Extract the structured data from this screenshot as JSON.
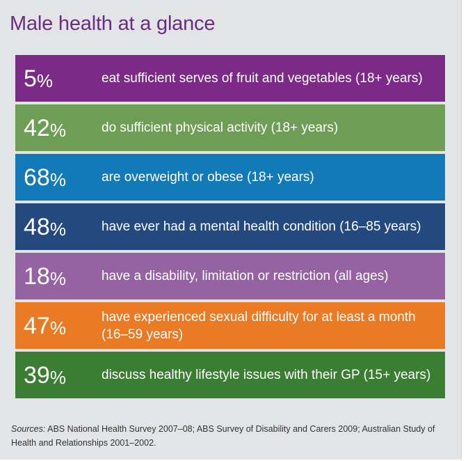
{
  "title": "Male health at a glance",
  "rows": [
    {
      "value": "5",
      "percent_sign": "%",
      "text": "eat sufficient serves of fruit and vegetables (18+ years)",
      "color": "#7b2a85"
    },
    {
      "value": "42",
      "percent_sign": "%",
      "text": "do sufficient physical activity (18+ years)",
      "color": "#6e9d55"
    },
    {
      "value": "68",
      "percent_sign": "%",
      "text": "are overweight or obese (18+ years)",
      "color": "#137ab8"
    },
    {
      "value": "48",
      "percent_sign": "%",
      "text": "have ever had a mental health condition (16–85 years)",
      "color": "#24497e"
    },
    {
      "value": "18",
      "percent_sign": "%",
      "text": "have a disability, limitation or restriction (all ages)",
      "color": "#9563a2"
    },
    {
      "value": "47",
      "percent_sign": "%",
      "text": "have experienced sexual difficulty for at least a month (16–59 years)",
      "color": "#ea7a24"
    },
    {
      "value": "39",
      "percent_sign": "%",
      "text": "discuss healthy lifestyle issues with their GP (15+ years)",
      "color": "#3b7d32"
    }
  ],
  "sources": {
    "label": "Sources:",
    "text": " ABS National Health Survey 2007–08; ABS Survey of Disability and Carers 2009; Australian Study of Health and Relationships 2001–2002."
  }
}
